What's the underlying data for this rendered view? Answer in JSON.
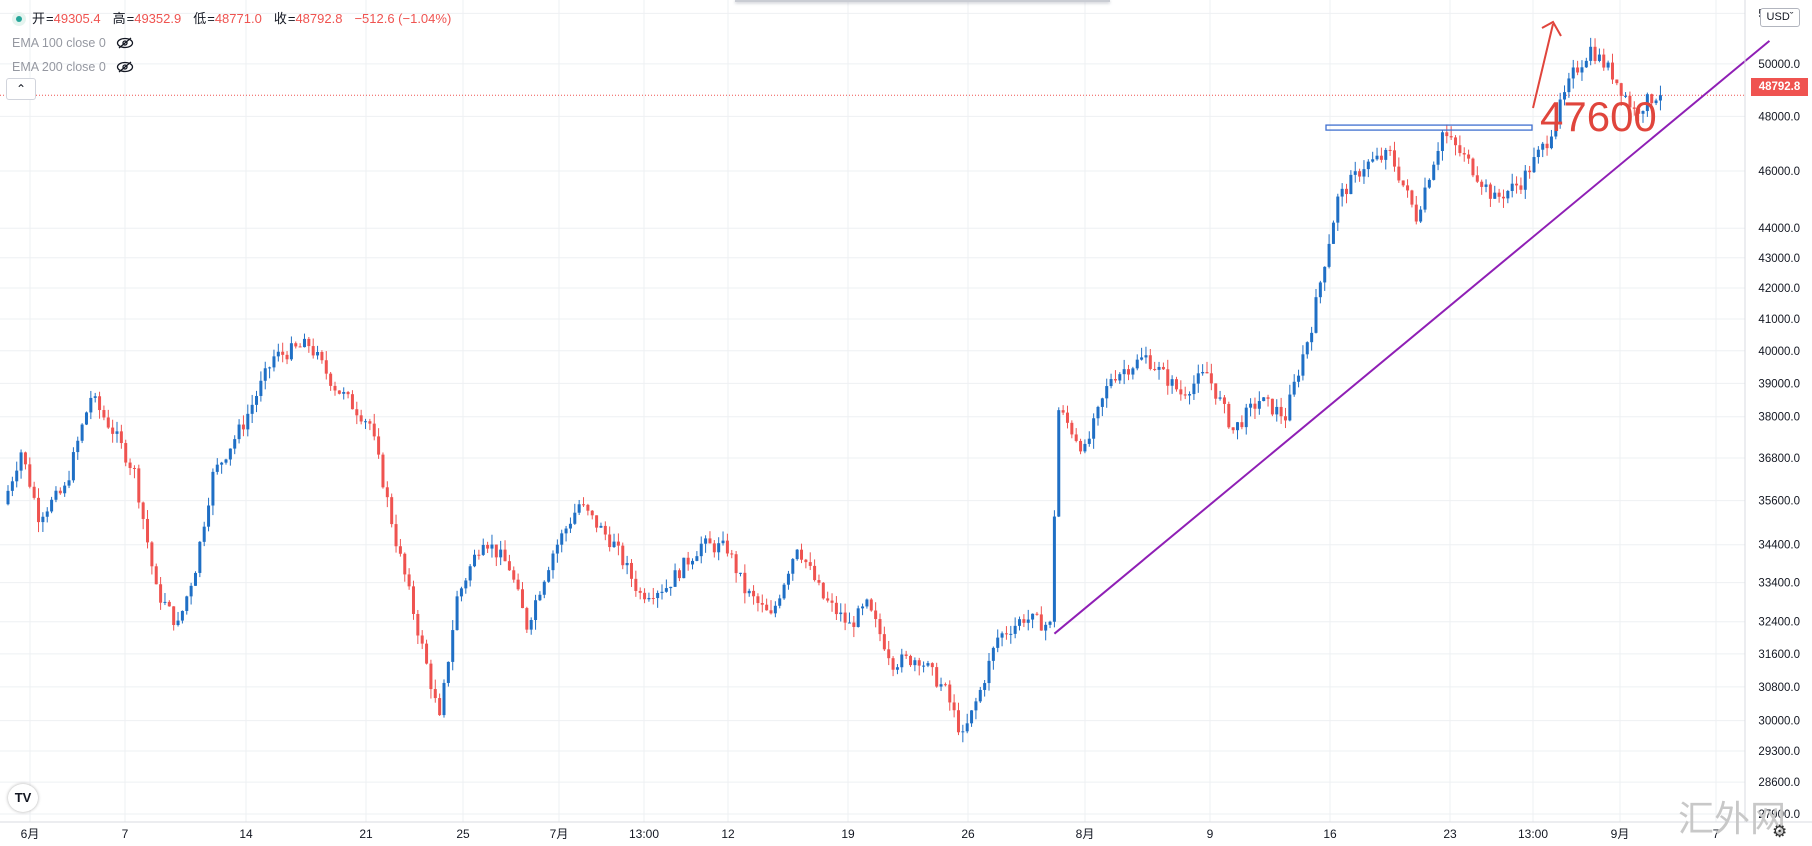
{
  "legend": {
    "ohlc": [
      {
        "label": "开",
        "value": "49305.4"
      },
      {
        "label": "高",
        "value": "49352.9"
      },
      {
        "label": "低",
        "value": "48771.0"
      },
      {
        "label": "收",
        "value": "48792.8"
      }
    ],
    "change": "−512.6 (−1.04%)",
    "indicators": [
      "EMA 100 close 0",
      "EMA 200 close 0"
    ]
  },
  "currency": "USD",
  "last_price_label": "48792.8",
  "annotation": "47600",
  "watermark": "汇外网",
  "colors": {
    "up": "#1f6fc5",
    "down": "#ef5350",
    "trendline": "#8f1fb5",
    "arrow": "#e0453c",
    "support": "#3f6fcf"
  },
  "chart_data": {
    "type": "candlestick",
    "y_scale": "log",
    "ylim": [
      27900,
      52300
    ],
    "y_ticks": [
      52000,
      50000,
      48000,
      46000,
      44000,
      43000,
      42000,
      41000,
      40000,
      39000,
      38000,
      36800,
      35600,
      34400,
      33400,
      32400,
      31600,
      30800,
      30000,
      29300,
      28600,
      27900
    ],
    "x_tick_labels": [
      "6月",
      "7",
      "14",
      "21",
      "25",
      "7月",
      "13:00",
      "12",
      "19",
      "26",
      "8月",
      "9",
      "16",
      "23",
      "13:00",
      "9月",
      "7"
    ],
    "last_price": 48792.8,
    "support_level": 47600,
    "trendline": [
      {
        "bar": 240,
        "price": 32100
      },
      {
        "bar": 404,
        "price": 50900
      }
    ],
    "anchors": [
      {
        "bar": 0,
        "price": 35500
      },
      {
        "bar": 4,
        "price": 37000
      },
      {
        "bar": 8,
        "price": 35200
      },
      {
        "bar": 14,
        "price": 35900
      },
      {
        "bar": 20,
        "price": 38600
      },
      {
        "bar": 25,
        "price": 37600
      },
      {
        "bar": 30,
        "price": 36400
      },
      {
        "bar": 35,
        "price": 33200
      },
      {
        "bar": 40,
        "price": 32300
      },
      {
        "bar": 44,
        "price": 33800
      },
      {
        "bar": 48,
        "price": 36300
      },
      {
        "bar": 55,
        "price": 37800
      },
      {
        "bar": 62,
        "price": 39800
      },
      {
        "bar": 70,
        "price": 40200
      },
      {
        "bar": 76,
        "price": 38900
      },
      {
        "bar": 84,
        "price": 37800
      },
      {
        "bar": 90,
        "price": 34500
      },
      {
        "bar": 95,
        "price": 32200
      },
      {
        "bar": 100,
        "price": 30000
      },
      {
        "bar": 104,
        "price": 33000
      },
      {
        "bar": 110,
        "price": 34600
      },
      {
        "bar": 116,
        "price": 33800
      },
      {
        "bar": 120,
        "price": 32300
      },
      {
        "bar": 126,
        "price": 34200
      },
      {
        "bar": 132,
        "price": 35500
      },
      {
        "bar": 140,
        "price": 34400
      },
      {
        "bar": 146,
        "price": 33100
      },
      {
        "bar": 152,
        "price": 33300
      },
      {
        "bar": 160,
        "price": 34400
      },
      {
        "bar": 166,
        "price": 34300
      },
      {
        "bar": 170,
        "price": 33200
      },
      {
        "bar": 176,
        "price": 32500
      },
      {
        "bar": 182,
        "price": 34400
      },
      {
        "bar": 188,
        "price": 33000
      },
      {
        "bar": 194,
        "price": 32300
      },
      {
        "bar": 198,
        "price": 32800
      },
      {
        "bar": 204,
        "price": 31400
      },
      {
        "bar": 210,
        "price": 31500
      },
      {
        "bar": 216,
        "price": 30700
      },
      {
        "bar": 220,
        "price": 29600
      },
      {
        "bar": 224,
        "price": 30700
      },
      {
        "bar": 228,
        "price": 32000
      },
      {
        "bar": 234,
        "price": 32500
      },
      {
        "bar": 240,
        "price": 32300
      },
      {
        "bar": 242,
        "price": 38200
      },
      {
        "bar": 248,
        "price": 37000
      },
      {
        "bar": 254,
        "price": 39200
      },
      {
        "bar": 262,
        "price": 39800
      },
      {
        "bar": 270,
        "price": 38700
      },
      {
        "bar": 276,
        "price": 39300
      },
      {
        "bar": 282,
        "price": 37600
      },
      {
        "bar": 288,
        "price": 38500
      },
      {
        "bar": 294,
        "price": 38000
      },
      {
        "bar": 300,
        "price": 40800
      },
      {
        "bar": 306,
        "price": 45000
      },
      {
        "bar": 312,
        "price": 46200
      },
      {
        "bar": 318,
        "price": 46600
      },
      {
        "bar": 324,
        "price": 44400
      },
      {
        "bar": 330,
        "price": 47400
      },
      {
        "bar": 336,
        "price": 46300
      },
      {
        "bar": 342,
        "price": 45000
      },
      {
        "bar": 348,
        "price": 45600
      },
      {
        "bar": 354,
        "price": 47100
      },
      {
        "bar": 360,
        "price": 49600
      },
      {
        "bar": 364,
        "price": 50600
      },
      {
        "bar": 369,
        "price": 49600
      },
      {
        "bar": 374,
        "price": 48200
      },
      {
        "bar": 379,
        "price": 48800
      }
    ]
  }
}
